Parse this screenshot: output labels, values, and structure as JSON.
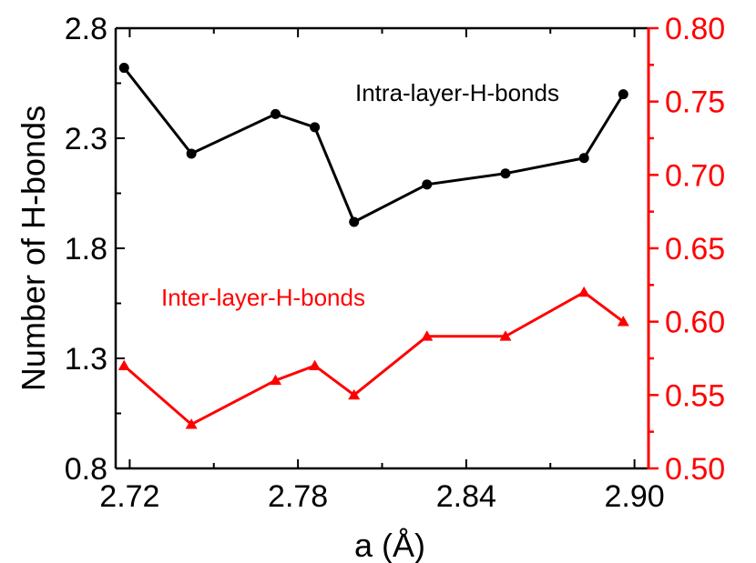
{
  "colors": {
    "intra": "#000000",
    "inter": "#ff0000",
    "axis_left": "#000000",
    "axis_right": "#ff0000"
  },
  "chart_data": {
    "type": "line",
    "xlabel": "a (Å)",
    "ylabel": "Number of H-bonds",
    "xlim": [
      2.715,
      2.905
    ],
    "ylim_left": [
      0.8,
      2.8
    ],
    "ylim_right": [
      0.5,
      0.8
    ],
    "x_ticks": [
      "2.72",
      "2.78",
      "2.84",
      "2.90"
    ],
    "y_left_ticks": [
      "0.8",
      "1.3",
      "1.8",
      "2.3",
      "2.8"
    ],
    "y_right_ticks": [
      "0.50",
      "0.55",
      "0.60",
      "0.65",
      "0.70",
      "0.75",
      "0.80"
    ],
    "grid": false,
    "series": [
      {
        "name": "Intra-layer-H-bonds",
        "axis": "left",
        "marker": "circle",
        "x": [
          2.718,
          2.742,
          2.772,
          2.786,
          2.8,
          2.826,
          2.854,
          2.882,
          2.896
        ],
        "y": [
          2.62,
          2.23,
          2.41,
          2.35,
          1.92,
          2.09,
          2.14,
          2.21,
          2.5
        ]
      },
      {
        "name": "Inter-layer-H-bonds",
        "axis": "right",
        "marker": "triangle",
        "x": [
          2.718,
          2.742,
          2.772,
          2.786,
          2.8,
          2.826,
          2.854,
          2.882,
          2.896
        ],
        "y": [
          0.57,
          0.53,
          0.56,
          0.57,
          0.55,
          0.59,
          0.59,
          0.62,
          0.6
        ]
      }
    ]
  }
}
